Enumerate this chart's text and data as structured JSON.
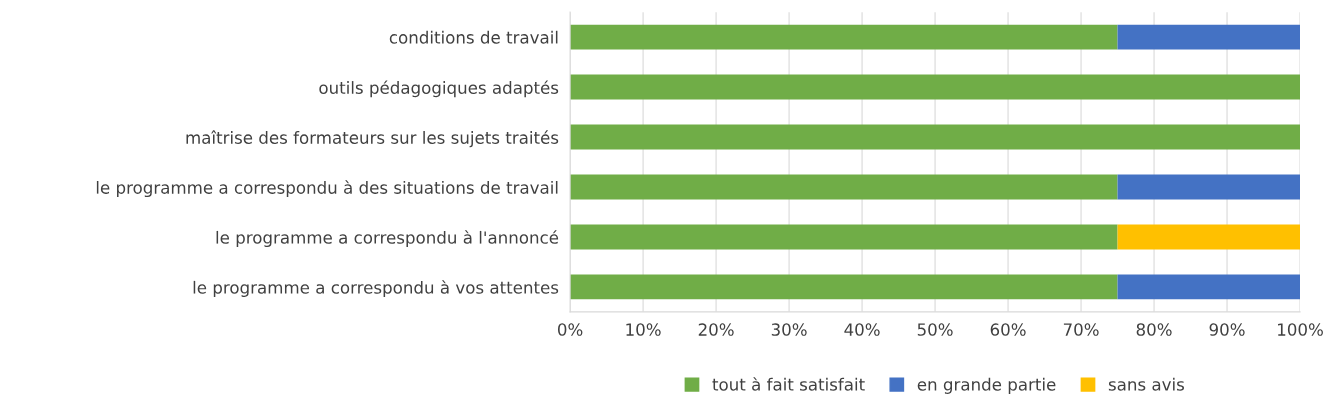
{
  "chart_data": {
    "type": "bar",
    "orientation": "horizontal",
    "stacked": true,
    "categories": [
      "conditions de travail",
      "outils pédagogiques adaptés",
      "maîtrise des formateurs sur les sujets traités",
      "le programme a correspondu à des situations de travail",
      "le programme a correspondu à l'annoncé",
      "le programme a correspondu à vos attentes"
    ],
    "series": [
      {
        "name": "tout à fait satisfait",
        "color": "#70ad47",
        "values": [
          75,
          100,
          100,
          75,
          75,
          75
        ]
      },
      {
        "name": "en grande partie",
        "color": "#4472c4",
        "values": [
          25,
          null,
          null,
          25,
          null,
          25
        ]
      },
      {
        "name": "sans avis",
        "color": "#ffc000",
        "values": [
          null,
          null,
          null,
          null,
          25,
          null
        ]
      }
    ],
    "xlim": [
      0,
      100
    ],
    "xticks": [
      {
        "value": 0,
        "label": "0%"
      },
      {
        "value": 10,
        "label": "10%"
      },
      {
        "value": 20,
        "label": "20%"
      },
      {
        "value": 30,
        "label": "30%"
      },
      {
        "value": 40,
        "label": "40%"
      },
      {
        "value": 50,
        "label": "50%"
      },
      {
        "value": 60,
        "label": "60%"
      },
      {
        "value": 70,
        "label": "70%"
      },
      {
        "value": 80,
        "label": "80%"
      },
      {
        "value": 90,
        "label": "90%"
      },
      {
        "value": 100,
        "label": "100%"
      }
    ],
    "grid": "x",
    "legend": "bottom"
  }
}
